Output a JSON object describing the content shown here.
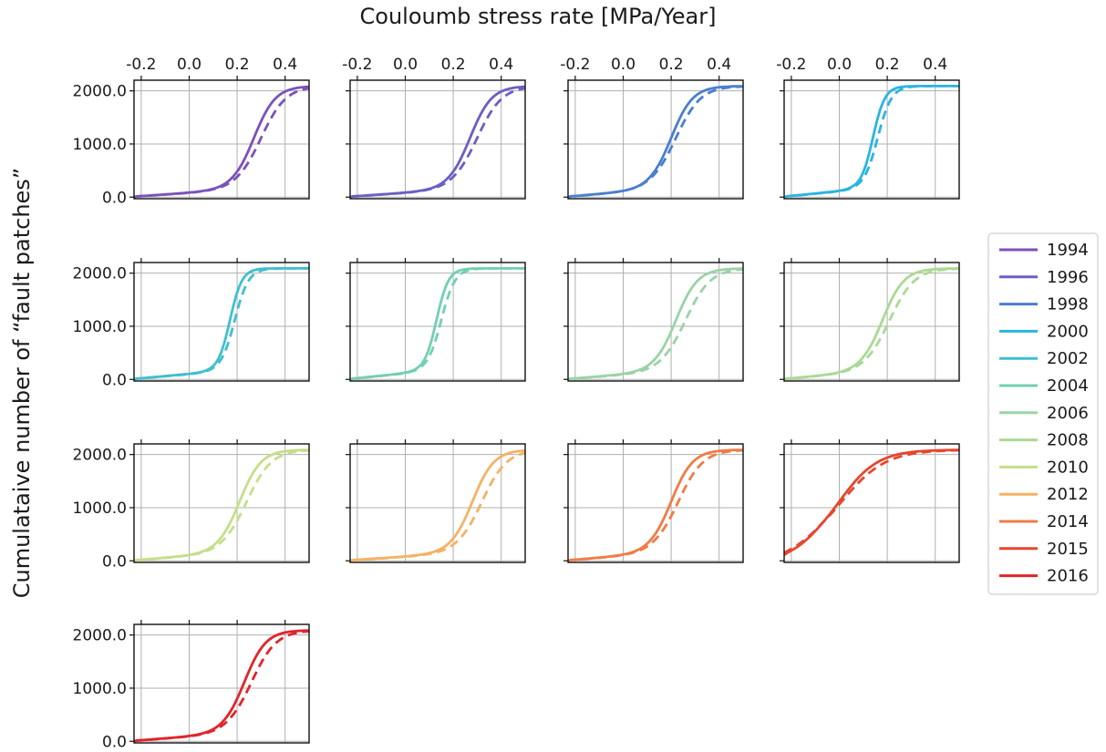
{
  "chart_data": {
    "type": "line",
    "xlabel": "Couloumb stress rate [MPa/Year]",
    "ylabel": "Cumulataive number of “fault patches”",
    "xlim": [
      -0.23,
      0.5
    ],
    "ylim": [
      -30,
      2200
    ],
    "xticks": [
      -0.2,
      0.0,
      0.2,
      0.4
    ],
    "xtick_labels": [
      "-0.2",
      "0.0",
      "0.2",
      "0.4"
    ],
    "yticks": [
      0,
      1000,
      2000
    ],
    "ytick_labels": [
      "0.0",
      "1000.0",
      "2000.0"
    ],
    "grid": true,
    "legend_position": "right",
    "line_styles": [
      "solid",
      "dashed"
    ],
    "panels": [
      {
        "year": "1994",
        "color": "#7b52b9",
        "solid_mid": 0.27,
        "dashed_mid": 0.3
      },
      {
        "year": "1996",
        "color": "#6a5fc4",
        "solid_mid": 0.27,
        "dashed_mid": 0.3
      },
      {
        "year": "1998",
        "color": "#4a7fcf",
        "solid_mid": 0.2,
        "dashed_mid": 0.22
      },
      {
        "year": "2000",
        "color": "#2bb4e0",
        "solid_mid": 0.14,
        "dashed_mid": 0.16
      },
      {
        "year": "2002",
        "color": "#40bfcf",
        "solid_mid": 0.17,
        "dashed_mid": 0.19
      },
      {
        "year": "2004",
        "color": "#72cfb3",
        "solid_mid": 0.13,
        "dashed_mid": 0.15
      },
      {
        "year": "2006",
        "color": "#9ad3a6",
        "solid_mid": 0.22,
        "dashed_mid": 0.26
      },
      {
        "year": "2008",
        "color": "#abd995",
        "solid_mid": 0.18,
        "dashed_mid": 0.21
      },
      {
        "year": "2010",
        "color": "#c5de89",
        "solid_mid": 0.21,
        "dashed_mid": 0.24
      },
      {
        "year": "2012",
        "color": "#f4b264",
        "solid_mid": 0.28,
        "dashed_mid": 0.32
      },
      {
        "year": "2014",
        "color": "#ef7c46",
        "solid_mid": 0.2,
        "dashed_mid": 0.23
      },
      {
        "year": "2015",
        "color": "#e6462e",
        "solid_mid": 0.0,
        "dashed_mid": 0.01
      },
      {
        "year": "2016",
        "color": "#e0252a",
        "solid_mid": 0.23,
        "dashed_mid": 0.26
      }
    ],
    "legend": [
      "1994",
      "1996",
      "1998",
      "2000",
      "2002",
      "2004",
      "2006",
      "2008",
      "2010",
      "2012",
      "2014",
      "2015",
      "2016"
    ]
  }
}
